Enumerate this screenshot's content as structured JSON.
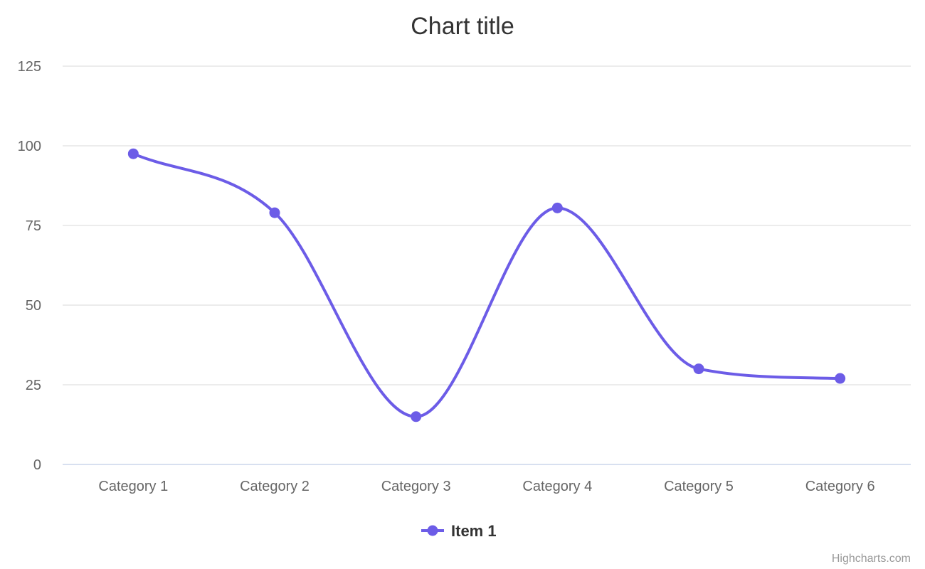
{
  "chart_data": {
    "type": "line",
    "title": "Chart title",
    "categories": [
      "Category 1",
      "Category 2",
      "Category 3",
      "Category 4",
      "Category 5",
      "Category 6"
    ],
    "series": [
      {
        "name": "Item 1",
        "values": [
          97.5,
          79,
          15,
          80.5,
          30,
          27
        ],
        "color": "#6c5ce7"
      }
    ],
    "y_ticks": [
      0,
      25,
      50,
      75,
      100,
      125
    ],
    "ylim": [
      0,
      125
    ],
    "smooth": true,
    "grid": true,
    "legend_position": "bottom-center"
  },
  "credits": "Highcharts.com"
}
